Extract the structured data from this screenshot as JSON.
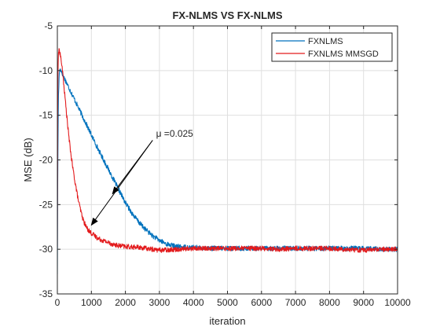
{
  "chart_data": {
    "type": "line",
    "title": "FX-NLMS VS FX-NLMS",
    "xlabel": "iteration",
    "ylabel": "MSE (dB)",
    "xlim": [
      0,
      10000
    ],
    "ylim": [
      -35,
      -5
    ],
    "xticks": [
      0,
      1000,
      2000,
      3000,
      4000,
      5000,
      6000,
      7000,
      8000,
      9000,
      10000
    ],
    "xtick_labels": [
      "0",
      "1000",
      "2000",
      "3000",
      "4000",
      "5000",
      "6000",
      "7000",
      "8000",
      "9000",
      "10000"
    ],
    "yticks": [
      -35,
      -30,
      -25,
      -20,
      -15,
      -10,
      -5
    ],
    "ytick_labels": [
      "-35",
      "-30",
      "-25",
      "-20",
      "-15",
      "-10",
      "-5"
    ],
    "grid": true,
    "legend": "top-right",
    "series": [
      {
        "name": "FXNLMS",
        "color": "#0072bd",
        "x": [
          0,
          10,
          30,
          60,
          100,
          200,
          300,
          400,
          500,
          600,
          700,
          800,
          900,
          1000,
          1200,
          1400,
          1600,
          1800,
          2000,
          2200,
          2400,
          2600,
          2800,
          3000,
          3200,
          3500,
          4000,
          4500,
          5000,
          5500,
          6000,
          6500,
          7000,
          7500,
          8000,
          8500,
          9000,
          9500,
          10000
        ],
        "y": [
          -32.8,
          -22,
          -13,
          -10,
          -9.9,
          -10.8,
          -11.6,
          -12.4,
          -13.2,
          -14.0,
          -14.8,
          -15.6,
          -16.4,
          -17.2,
          -18.8,
          -20.3,
          -21.8,
          -23.3,
          -24.8,
          -26.0,
          -27.0,
          -27.8,
          -28.5,
          -29.0,
          -29.4,
          -29.7,
          -29.8,
          -29.9,
          -29.9,
          -29.9,
          -29.9,
          -29.9,
          -29.9,
          -29.9,
          -29.9,
          -29.9,
          -29.9,
          -30.0,
          -30.0
        ]
      },
      {
        "name": "FXNLMS MMSGD",
        "color": "#e31a1c",
        "x": [
          0,
          10,
          30,
          60,
          100,
          150,
          200,
          250,
          300,
          350,
          400,
          450,
          500,
          550,
          600,
          650,
          700,
          750,
          800,
          850,
          900,
          950,
          1000,
          1100,
          1200,
          1400,
          1600,
          1800,
          2000,
          2400,
          2800,
          3000,
          3500,
          4000,
          4500,
          5000,
          5500,
          6000,
          6500,
          7000,
          7500,
          8000,
          8500,
          9000,
          9500,
          10000
        ],
        "y": [
          -29.8,
          -12,
          -8.0,
          -7.7,
          -8.5,
          -10.0,
          -12.0,
          -14.0,
          -16.0,
          -17.8,
          -19.4,
          -20.8,
          -22.0,
          -23.1,
          -24.2,
          -25.1,
          -25.9,
          -26.6,
          -27.1,
          -27.5,
          -27.8,
          -28.0,
          -28.2,
          -28.5,
          -28.8,
          -29.1,
          -29.4,
          -29.6,
          -29.7,
          -29.8,
          -30.0,
          -30.1,
          -30.0,
          -29.9,
          -29.9,
          -29.9,
          -29.9,
          -29.9,
          -30.0,
          -29.9,
          -29.9,
          -29.9,
          -30.0,
          -30.1,
          -30.0,
          -30.0
        ]
      }
    ],
    "annotation": {
      "label": "μ =0.025",
      "text_x": 2900,
      "text_y": -17.4,
      "arrows": [
        {
          "from": [
            2800,
            -17.8
          ],
          "to": [
            1620,
            -23.8
          ]
        },
        {
          "from": [
            2800,
            -17.8
          ],
          "to": [
            1000,
            -27.3
          ]
        }
      ]
    }
  }
}
